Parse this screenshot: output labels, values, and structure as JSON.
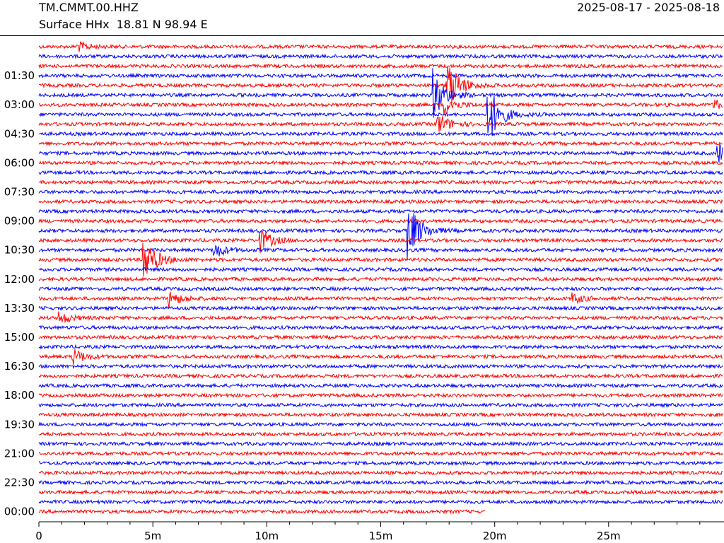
{
  "header": {
    "station": "TM.CMMT.00.HHZ",
    "subtitle": "Surface HHx  18.81 N 98.94 E",
    "date_range": "2025-08-17 - 2025-08-18"
  },
  "chart_data": {
    "type": "line",
    "title": "TM.CMMT.00.HHZ",
    "subtitle": "Surface HHx  18.81 N 98.94 E",
    "xlabel": "",
    "ylabel": "",
    "x_tick_labels": [
      "0",
      "5m",
      "10m",
      "15m",
      "20m",
      "25m"
    ],
    "x_tick_values": [
      0,
      5,
      10,
      15,
      20,
      25
    ],
    "x_minor_step": 1,
    "xlim": [
      0,
      30
    ],
    "y_tick_labels": [
      "01:30",
      "03:00",
      "04:30",
      "06:00",
      "07:30",
      "09:00",
      "10:30",
      "12:00",
      "13:30",
      "15:00",
      "16:30",
      "18:00",
      "19:30",
      "21:00",
      "22:30",
      "00:00"
    ],
    "row_minutes": 30,
    "row_count": 49,
    "last_row_length_minutes": 19.6,
    "colors": [
      "#ff0000",
      "#0000ff"
    ],
    "grid": false,
    "events": [
      {
        "row": 0,
        "minute": 1.7,
        "amplitude": 0.6
      },
      {
        "row": 4,
        "minute": 17.9,
        "amplitude": 3.5
      },
      {
        "row": 5,
        "minute": 17.3,
        "amplitude": 3.0
      },
      {
        "row": 6,
        "minute": 17.8,
        "amplitude": 1.2
      },
      {
        "row": 7,
        "minute": 19.7,
        "amplitude": 3.8
      },
      {
        "row": 6,
        "minute": 29.6,
        "amplitude": 0.6
      },
      {
        "row": 8,
        "minute": 17.5,
        "amplitude": 1.3
      },
      {
        "row": 11,
        "minute": 29.8,
        "amplitude": 1.2
      },
      {
        "row": 19,
        "minute": 16.2,
        "amplitude": 3.5
      },
      {
        "row": 20,
        "minute": 9.7,
        "amplitude": 1.4
      },
      {
        "row": 21,
        "minute": 7.7,
        "amplitude": 0.9
      },
      {
        "row": 22,
        "minute": 4.6,
        "amplitude": 3.0
      },
      {
        "row": 26,
        "minute": 5.7,
        "amplitude": 1.0
      },
      {
        "row": 26,
        "minute": 23.4,
        "amplitude": 0.6
      },
      {
        "row": 28,
        "minute": 0.9,
        "amplitude": 0.7
      },
      {
        "row": 32,
        "minute": 1.5,
        "amplitude": 0.9
      }
    ]
  }
}
